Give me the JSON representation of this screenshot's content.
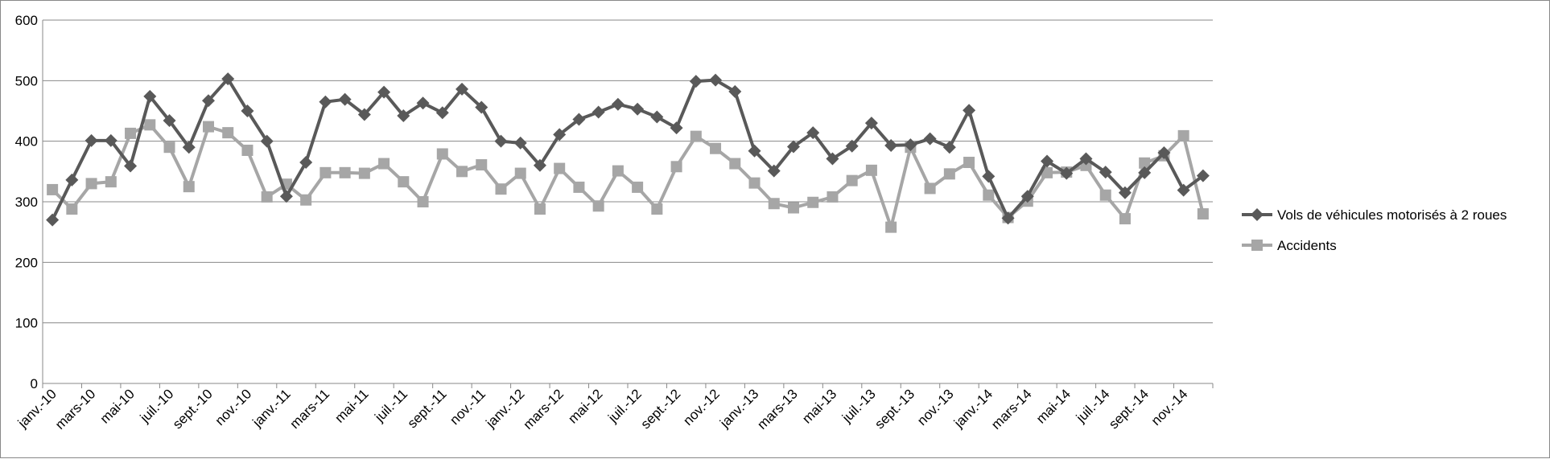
{
  "chart_data": {
    "type": "line",
    "x": [
      "janv.-10",
      "févr.-10",
      "mars-10",
      "avr.-10",
      "mai-10",
      "juin-10",
      "juil.-10",
      "août-10",
      "sept.-10",
      "oct.-10",
      "nov.-10",
      "déc.-10",
      "janv.-11",
      "févr.-11",
      "mars-11",
      "avr.-11",
      "mai-11",
      "juin-11",
      "juil.-11",
      "août-11",
      "sept.-11",
      "oct.-11",
      "nov.-11",
      "déc.-11",
      "janv.-12",
      "févr.-12",
      "mars-12",
      "avr.-12",
      "mai-12",
      "juin-12",
      "juil.-12",
      "août-12",
      "sept.-12",
      "oct.-12",
      "nov.-12",
      "déc.-12",
      "janv.-13",
      "févr.-13",
      "mars-13",
      "avr.-13",
      "mai-13",
      "juin-13",
      "juil.-13",
      "août-13",
      "sept.-13",
      "oct.-13",
      "nov.-13",
      "déc.-13",
      "janv.-14",
      "févr.-14",
      "mars-14",
      "avr.-14",
      "mai-14",
      "juin-14",
      "juil.-14",
      "août-14",
      "sept.-14",
      "oct.-14",
      "nov.-14",
      "déc.-14"
    ],
    "x_tick_labels": [
      "janv.-10",
      "mars-10",
      "mai-10",
      "juil.-10",
      "sept.-10",
      "nov.-10",
      "janv.-11",
      "mars-11",
      "mai-11",
      "juil.-11",
      "sept.-11",
      "nov.-11",
      "janv.-12",
      "mars-12",
      "mai-12",
      "juil.-12",
      "sept.-12",
      "nov.-12",
      "janv.-13",
      "mars-13",
      "mai-13",
      "juil.-13",
      "sept.-13",
      "nov.-13",
      "janv.-14",
      "mars-14",
      "mai-14",
      "juil.-14",
      "sept.-14",
      "nov.-14"
    ],
    "series": [
      {
        "name": "Vols de véhicules motorisés à 2 roues",
        "color": "#595959",
        "marker": "diamond",
        "values": [
          270,
          336,
          401,
          401,
          359,
          474,
          434,
          390,
          467,
          503,
          450,
          400,
          309,
          365,
          465,
          469,
          444,
          481,
          442,
          463,
          447,
          486,
          456,
          400,
          397,
          360,
          411,
          436,
          448,
          461,
          453,
          440,
          422,
          499,
          501,
          482,
          384,
          351,
          391,
          414,
          371,
          392,
          430,
          393,
          394,
          404,
          390,
          451,
          342,
          273,
          309,
          367,
          347,
          371,
          349,
          315,
          348,
          381,
          319,
          343
        ]
      },
      {
        "name": "Accidents",
        "color": "#a6a6a6",
        "marker": "square",
        "values": [
          320,
          288,
          330,
          333,
          413,
          427,
          390,
          325,
          424,
          414,
          385,
          308,
          329,
          303,
          348,
          348,
          347,
          363,
          333,
          300,
          379,
          350,
          361,
          321,
          347,
          288,
          355,
          324,
          293,
          351,
          324,
          288,
          358,
          408,
          388,
          363,
          331,
          297,
          290,
          299,
          308,
          335,
          352,
          258,
          390,
          322,
          346,
          365,
          311,
          274,
          301,
          348,
          349,
          360,
          311,
          272,
          364,
          376,
          409,
          280
        ]
      }
    ],
    "yticks": [
      "0",
      "100",
      "200",
      "300",
      "400",
      "500",
      "600"
    ],
    "ylim": [
      0,
      600
    ],
    "title": "",
    "xlabel": "",
    "ylabel": "",
    "grid": true,
    "legend_position": "right"
  }
}
